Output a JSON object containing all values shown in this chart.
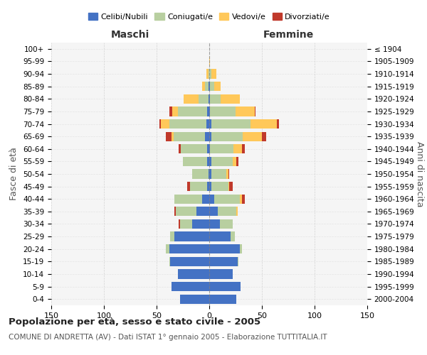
{
  "age_groups": [
    "100+",
    "95-99",
    "90-94",
    "85-89",
    "80-84",
    "75-79",
    "70-74",
    "65-69",
    "60-64",
    "55-59",
    "50-54",
    "45-49",
    "40-44",
    "35-39",
    "30-34",
    "25-29",
    "20-24",
    "15-19",
    "10-14",
    "5-9",
    "0-4"
  ],
  "birth_years": [
    "≤ 1904",
    "1905-1909",
    "1910-1914",
    "1915-1919",
    "1920-1924",
    "1925-1929",
    "1930-1934",
    "1935-1939",
    "1940-1944",
    "1945-1949",
    "1950-1954",
    "1955-1959",
    "1960-1964",
    "1965-1969",
    "1970-1974",
    "1975-1979",
    "1980-1984",
    "1985-1989",
    "1990-1994",
    "1995-1999",
    "2000-2004"
  ],
  "maschi": {
    "celibi": [
      0,
      0,
      0,
      1,
      1,
      2,
      3,
      4,
      2,
      2,
      1,
      2,
      7,
      12,
      16,
      33,
      38,
      37,
      30,
      36,
      28
    ],
    "coniugati": [
      0,
      0,
      1,
      3,
      9,
      28,
      35,
      30,
      25,
      23,
      15,
      16,
      26,
      20,
      12,
      4,
      3,
      1,
      0,
      0,
      0
    ],
    "vedovi": [
      0,
      0,
      2,
      3,
      14,
      5,
      8,
      2,
      0,
      0,
      0,
      0,
      0,
      0,
      0,
      0,
      0,
      0,
      0,
      0,
      0
    ],
    "divorziati": [
      0,
      0,
      0,
      0,
      0,
      3,
      1,
      5,
      2,
      0,
      0,
      3,
      0,
      1,
      1,
      0,
      0,
      0,
      0,
      0,
      0
    ]
  },
  "femmine": {
    "nubili": [
      0,
      0,
      0,
      1,
      1,
      1,
      2,
      2,
      1,
      2,
      2,
      2,
      5,
      8,
      10,
      20,
      29,
      27,
      22,
      30,
      26
    ],
    "coniugate": [
      0,
      0,
      2,
      4,
      10,
      24,
      37,
      30,
      22,
      20,
      14,
      16,
      24,
      18,
      12,
      4,
      2,
      1,
      0,
      0,
      0
    ],
    "vedove": [
      0,
      1,
      5,
      6,
      18,
      18,
      25,
      18,
      8,
      4,
      2,
      1,
      2,
      1,
      0,
      0,
      0,
      0,
      0,
      0,
      0
    ],
    "divorziate": [
      0,
      0,
      0,
      0,
      0,
      1,
      2,
      4,
      3,
      2,
      1,
      3,
      3,
      0,
      0,
      0,
      0,
      0,
      0,
      0,
      0
    ]
  },
  "color_celibi": "#4472c4",
  "color_coniugati": "#b8cfa0",
  "color_vedovi": "#ffc85a",
  "color_divorziati": "#c0392b",
  "xlim": 150,
  "title": "Popolazione per età, sesso e stato civile - 2005",
  "subtitle": "COMUNE DI ANDRETTA (AV) - Dati ISTAT 1° gennaio 2005 - Elaborazione TUTTITALIA.IT",
  "ylabel_left": "Fasce di età",
  "ylabel_right": "Anni di nascita",
  "xlabel_left": "Maschi",
  "xlabel_right": "Femmine"
}
